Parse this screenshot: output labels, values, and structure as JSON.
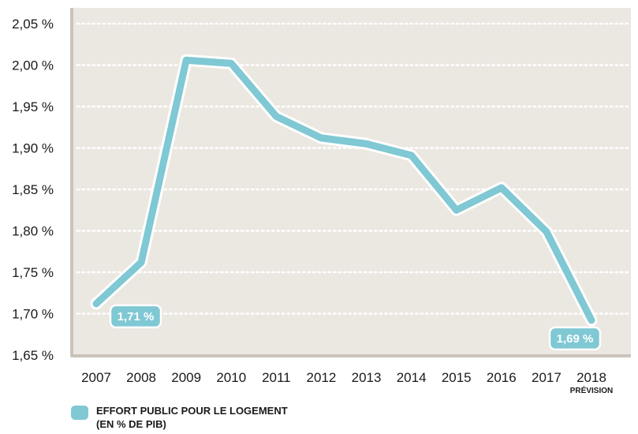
{
  "chart_data": {
    "type": "line",
    "x": [
      "2007",
      "2008",
      "2009",
      "2010",
      "2011",
      "2012",
      "2013",
      "2014",
      "2015",
      "2016",
      "2017",
      "2018"
    ],
    "x_sublabels": {
      "2018": "PRÉVISION"
    },
    "series": [
      {
        "name": "EFFORT PUBLIC POUR LE LOGEMENT (EN % DE PIB)",
        "values": [
          1.712,
          1.762,
          2.006,
          2.002,
          1.938,
          1.912,
          1.905,
          1.891,
          1.825,
          1.852,
          1.799,
          1.692
        ]
      }
    ],
    "yticks": [
      "1,65 %",
      "1,70 %",
      "1,75 %",
      "1,80 %",
      "1,85 %",
      "1,90 %",
      "1,95 %",
      "2,00 %",
      "2,05 %"
    ],
    "ylim": [
      1.65,
      2.05
    ],
    "grid": "horizontal dotted",
    "annotations": [
      {
        "x": "2007",
        "text": "1,71 %"
      },
      {
        "x": "2018",
        "text": "1,69 %"
      }
    ],
    "legend": {
      "position": "bottom-left",
      "line1": "EFFORT PUBLIC POUR LE LOGEMENT",
      "line2": "(EN % DE PIB)"
    },
    "colors": {
      "line": "#7fc8d4",
      "plot_background": "#ebe7e1",
      "axis": "#c9c3ba",
      "grid": "#ffffff"
    }
  }
}
